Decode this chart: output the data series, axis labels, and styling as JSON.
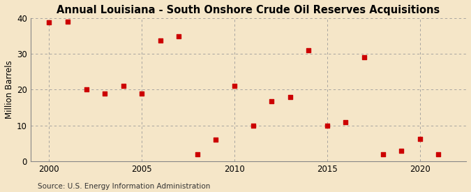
{
  "title": "Annual Louisiana - South Onshore Crude Oil Reserves Acquisitions",
  "ylabel": "Million Barrels",
  "source": "Source: U.S. Energy Information Administration",
  "background_color": "#f5e6c8",
  "plot_bg_color": "#f5e6c8",
  "marker_color": "#cc0000",
  "marker_size": 18,
  "years": [
    2000,
    2001,
    2002,
    2003,
    2004,
    2005,
    2006,
    2007,
    2008,
    2009,
    2010,
    2011,
    2012,
    2013,
    2014,
    2015,
    2016,
    2017,
    2018,
    2019,
    2020,
    2021
  ],
  "values": [
    38.8,
    39.0,
    20.1,
    18.9,
    21.0,
    19.0,
    33.7,
    35.0,
    2.0,
    6.1,
    21.0,
    10.0,
    16.8,
    18.0,
    31.0,
    9.9,
    11.0,
    29.0,
    2.0,
    3.0,
    6.2,
    2.0
  ],
  "xlim": [
    1999,
    2022.5
  ],
  "ylim": [
    0,
    40
  ],
  "yticks": [
    0,
    10,
    20,
    30,
    40
  ],
  "xticks": [
    2000,
    2005,
    2010,
    2015,
    2020
  ],
  "grid_color": "#999999",
  "title_fontsize": 10.5,
  "tick_fontsize": 8.5,
  "ylabel_fontsize": 8.5,
  "source_fontsize": 7.5
}
